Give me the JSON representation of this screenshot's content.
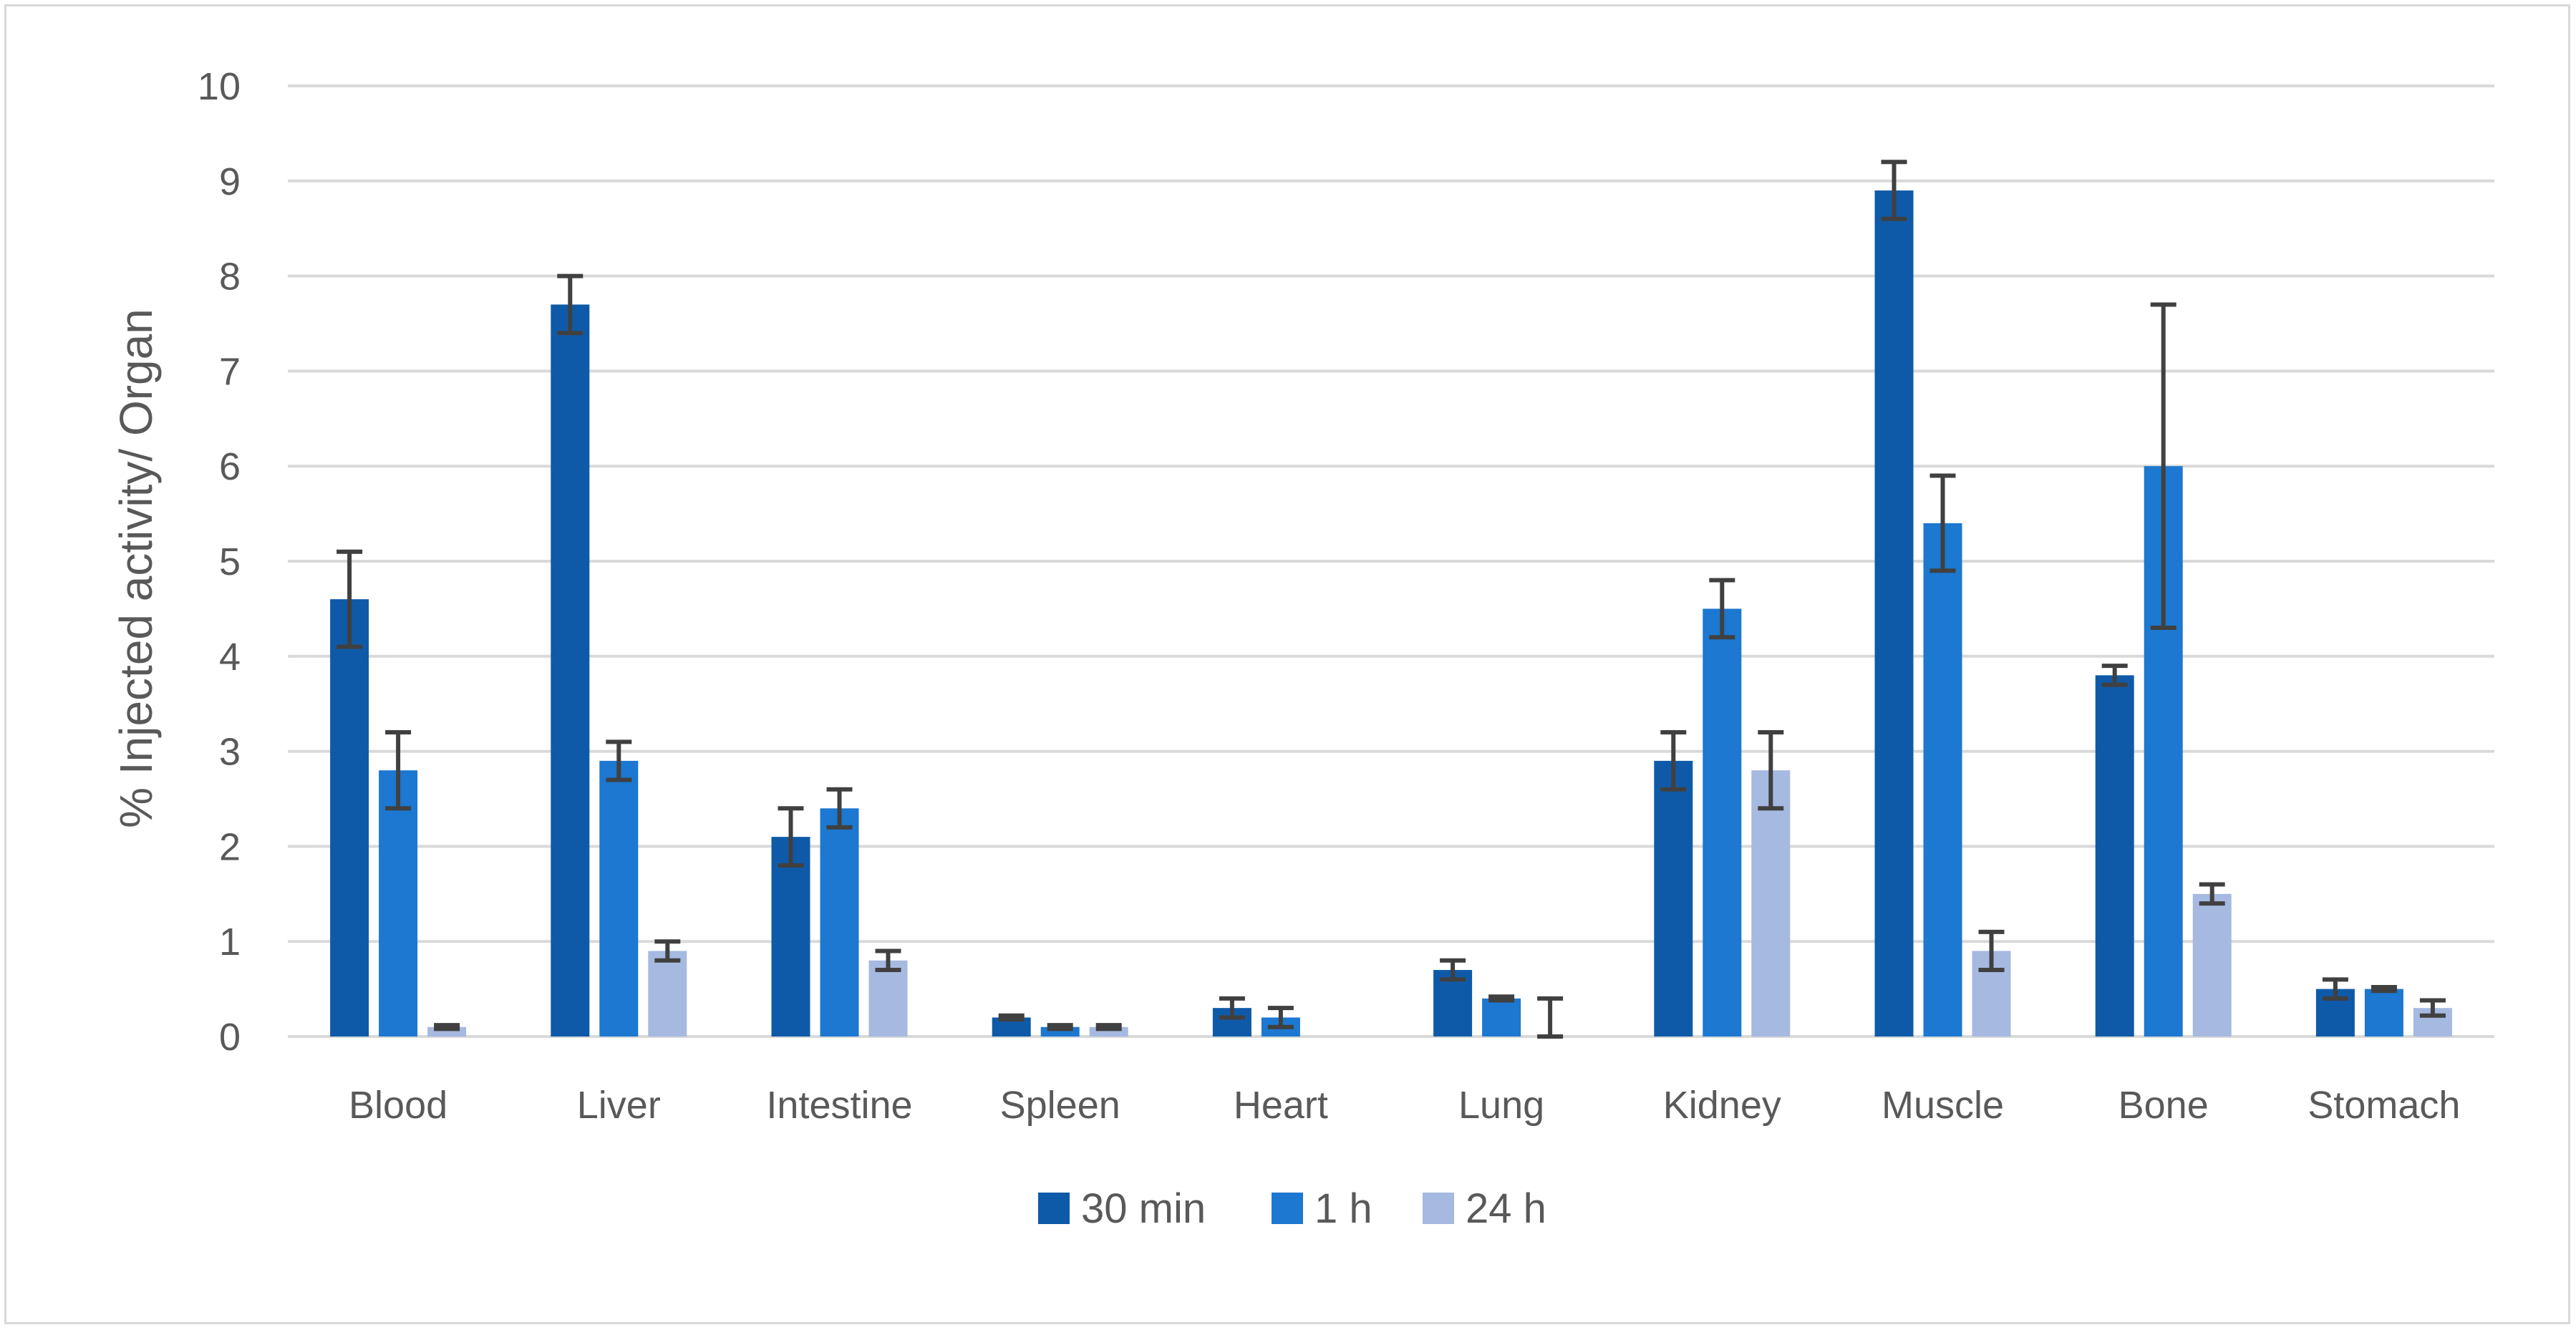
{
  "chart_data": {
    "type": "bar",
    "title": "",
    "xlabel": "",
    "ylabel": "% Injected activity/ Organ",
    "ylim": [
      0,
      10
    ],
    "yticks": [
      0,
      1,
      2,
      3,
      4,
      5,
      6,
      7,
      8,
      9,
      10
    ],
    "grid": true,
    "legend_position": "bottom",
    "categories": [
      "Blood",
      "Liver",
      "Intestine",
      "Spleen",
      "Heart",
      "Lung",
      "Kidney",
      "Muscle",
      "Bone",
      "Stomach"
    ],
    "series": [
      {
        "name": "30 min",
        "color": "#0f5aa8",
        "values": [
          4.6,
          7.7,
          2.1,
          0.2,
          0.3,
          0.7,
          2.9,
          8.9,
          3.8,
          0.5
        ],
        "errors": [
          0.5,
          0.3,
          0.3,
          0.02,
          0.1,
          0.1,
          0.3,
          0.3,
          0.1,
          0.1
        ]
      },
      {
        "name": "1 h",
        "color": "#1c78d0",
        "values": [
          2.8,
          2.9,
          2.4,
          0.1,
          0.2,
          0.4,
          4.5,
          5.4,
          6.0,
          0.5
        ],
        "errors": [
          0.4,
          0.2,
          0.2,
          0.02,
          0.1,
          0.02,
          0.3,
          0.5,
          1.7,
          0.02
        ]
      },
      {
        "name": "24 h",
        "color": "#a6b9e0",
        "values": [
          0.1,
          0.9,
          0.8,
          0.1,
          0.0,
          0.0,
          2.8,
          0.9,
          1.5,
          0.3
        ],
        "errors": [
          0.02,
          0.1,
          0.1,
          0.02,
          0.0,
          0.4,
          0.4,
          0.2,
          0.1,
          0.08
        ]
      }
    ]
  }
}
